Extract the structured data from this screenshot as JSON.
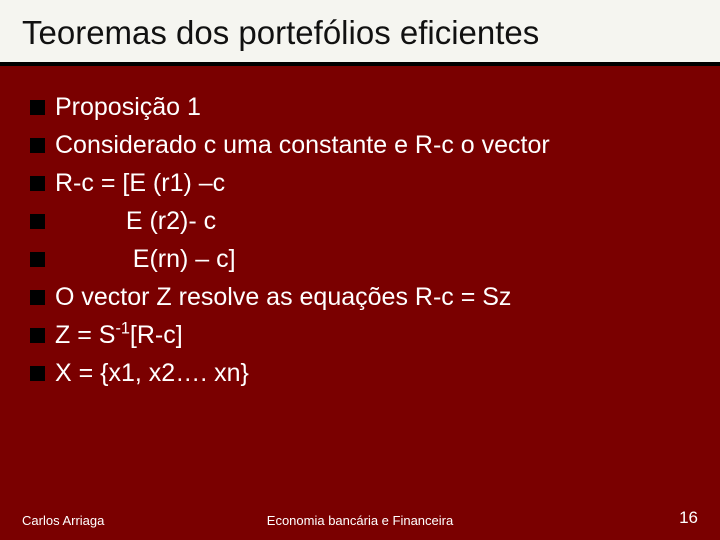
{
  "slide": {
    "background_color": "#7a0000",
    "title_bar_color": "#f5f5f0",
    "title_border_color": "#000000",
    "text_color": "#ffffff",
    "bullet_color": "#000000",
    "title_fontsize": 33,
    "body_fontsize": 25,
    "footer_fontsize": 13,
    "page_number_fontsize": 17,
    "title": "Teoremas dos portefólios eficientes",
    "bullets": [
      "Proposição 1",
      "Considerado c uma constante e R-c o vector",
      "R-c = [E (r1) –c",
      "            E (r2)- c",
      "            E(rn) – c]",
      "O vector Z resolve as equações  R-c = Sz",
      "Z = S⁻¹[R-c]",
      "X = {x1, x2…. xn}"
    ],
    "footer_left": "Carlos Arriaga",
    "footer_center": "Economia bancária e Financeira",
    "page_number": "16"
  }
}
